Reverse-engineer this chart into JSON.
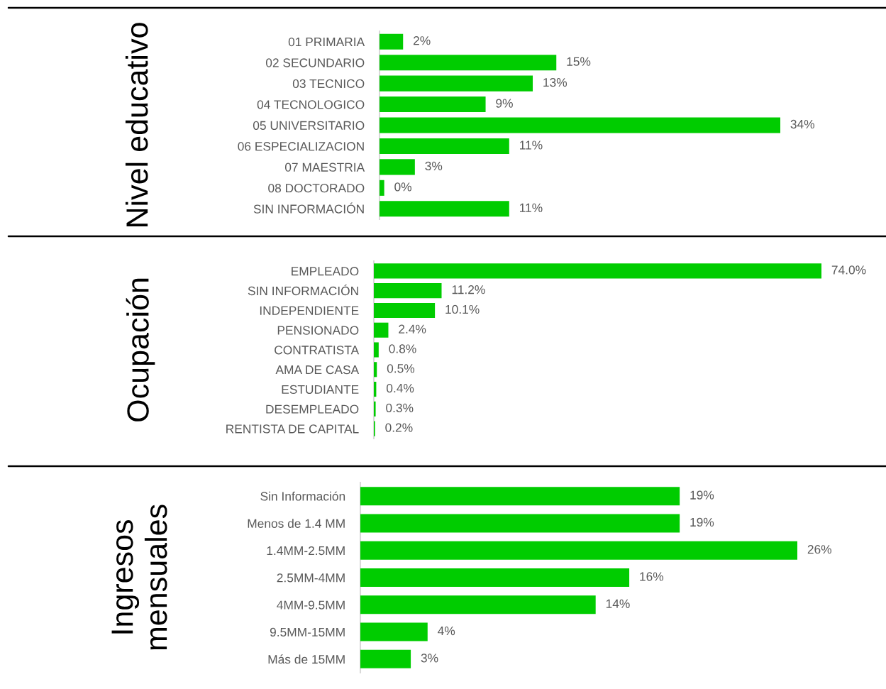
{
  "chart_data": [
    {
      "type": "bar",
      "orientation": "horizontal",
      "title": "Nivel educativo",
      "color": "#00cc00",
      "categories": [
        "01 PRIMARIA",
        "02 SECUNDARIO",
        "03 TECNICO",
        "04 TECNOLOGICO",
        "05 UNIVERSITARIO",
        "06 ESPECIALIZACION",
        "07 MAESTRIA",
        "08 DOCTORADO",
        "SIN INFORMACIÓN"
      ],
      "values": [
        2,
        15,
        13,
        9,
        34,
        11,
        3,
        0.4,
        11
      ],
      "value_labels": [
        "2%",
        "15%",
        "13%",
        "9%",
        "34%",
        "11%",
        "3%",
        "0%",
        "11%"
      ]
    },
    {
      "type": "bar",
      "orientation": "horizontal",
      "title": "Ocupación",
      "color": "#00cc00",
      "categories": [
        "EMPLEADO",
        "SIN INFORMACIÓN",
        "INDEPENDIENTE",
        "PENSIONADO",
        "CONTRATISTA",
        "AMA DE CASA",
        "ESTUDIANTE",
        "DESEMPLEADO",
        "RENTISTA DE CAPITAL"
      ],
      "values": [
        74.0,
        11.2,
        10.1,
        2.4,
        0.8,
        0.5,
        0.4,
        0.3,
        0.2
      ],
      "value_labels": [
        "74.0%",
        "11.2%",
        "10.1%",
        "2.4%",
        "0.8%",
        "0.5%",
        "0.4%",
        "0.3%",
        "0.2%"
      ]
    },
    {
      "type": "bar",
      "orientation": "horizontal",
      "title": "Ingresos\nmensuales",
      "color": "#00cc00",
      "categories": [
        "Sin Información",
        "Menos de 1.4 MM",
        "1.4MM-2.5MM",
        "2.5MM-4MM",
        "4MM-9.5MM",
        "9.5MM-15MM",
        "Más de 15MM"
      ],
      "values": [
        19,
        19,
        26,
        16,
        14,
        4,
        3
      ],
      "value_labels": [
        "19%",
        "19%",
        "26%",
        "16%",
        "14%",
        "4%",
        "3%"
      ]
    }
  ]
}
